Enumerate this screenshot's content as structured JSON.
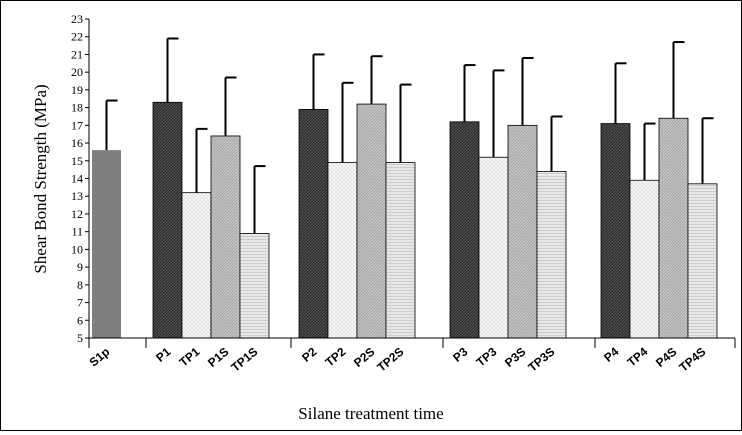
{
  "chart_data": {
    "type": "bar",
    "xlabel": "Silane treatment time",
    "ylabel": "Shear Bond Strength (MPa)",
    "ylim": [
      5,
      23
    ],
    "yticks": [
      5,
      6,
      7,
      8,
      9,
      10,
      11,
      12,
      13,
      14,
      15,
      16,
      17,
      18,
      19,
      20,
      21,
      22,
      23
    ],
    "grid": false,
    "legend": "none",
    "categories": [
      "S1p",
      "P1",
      "TP1",
      "P1S",
      "TP1S",
      "P2",
      "TP2",
      "P2S",
      "TP2S",
      "P3",
      "TP3",
      "P3S",
      "TP3S",
      "P4",
      "TP4",
      "P4S",
      "TP4S"
    ],
    "values": [
      15.6,
      18.3,
      13.2,
      16.4,
      10.9,
      17.9,
      14.9,
      18.2,
      14.9,
      17.2,
      15.2,
      17.0,
      14.4,
      17.1,
      13.9,
      17.4,
      13.7
    ],
    "error_upper": [
      18.4,
      21.9,
      16.8,
      19.7,
      14.7,
      21.0,
      19.4,
      20.9,
      19.3,
      20.4,
      20.1,
      20.8,
      17.5,
      20.5,
      17.1,
      21.7,
      17.4
    ],
    "groups": [
      {
        "bars": [
          0
        ]
      },
      {
        "bars": [
          1,
          2,
          3,
          4
        ]
      },
      {
        "bars": [
          5,
          6,
          7,
          8
        ]
      },
      {
        "bars": [
          9,
          10,
          11,
          12
        ]
      },
      {
        "bars": [
          13,
          14,
          15,
          16
        ]
      }
    ],
    "bar_styles": [
      "solid-gray",
      "dark-hatch",
      "light-dots",
      "medium-hatch",
      "fine-dots"
    ],
    "colors": {
      "solid_gray": "#7f7f7f",
      "dark": "#3a3a3a",
      "light": "#f2f2f2",
      "medium": "#bdbdbd",
      "fine": "#dcdcdc",
      "axis": "#000000"
    }
  }
}
